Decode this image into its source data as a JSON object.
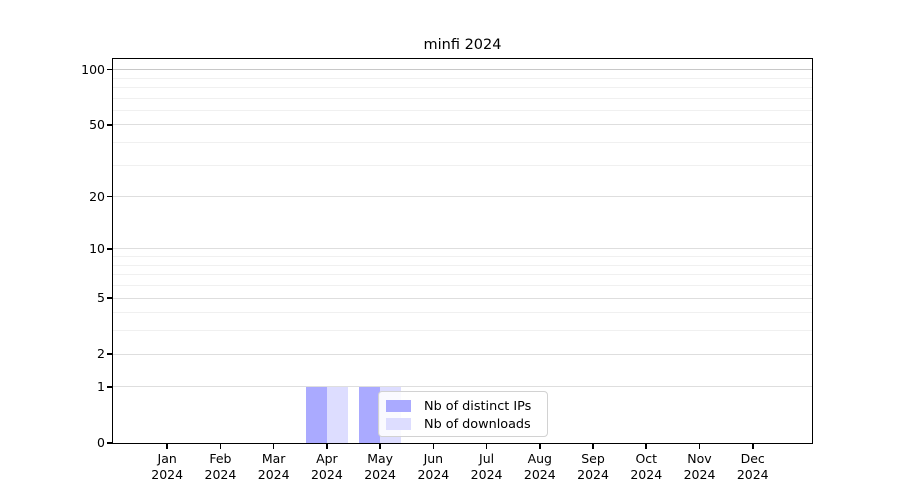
{
  "title": "minfi 2024",
  "legend": {
    "items": [
      {
        "label": "Nb of distinct IPs",
        "color": "#aaaaff"
      },
      {
        "label": "Nb of downloads",
        "color": "#ddddff"
      }
    ]
  },
  "axes": {
    "y_tick_labels": [
      "0",
      "1",
      "2",
      "5",
      "10",
      "20",
      "50",
      "100"
    ],
    "x_year": "2024"
  },
  "chart_data": {
    "type": "bar",
    "title": "minfi 2024",
    "categories": [
      "Jan 2024",
      "Feb 2024",
      "Mar 2024",
      "Apr 2024",
      "May 2024",
      "Jun 2024",
      "Jul 2024",
      "Aug 2024",
      "Sep 2024",
      "Oct 2024",
      "Nov 2024",
      "Dec 2024"
    ],
    "series": [
      {
        "name": "Nb of distinct IPs",
        "color": "#aaaaff",
        "values": [
          0,
          0,
          0,
          1,
          1,
          0,
          0,
          0,
          0,
          0,
          0,
          0
        ]
      },
      {
        "name": "Nb of downloads",
        "color": "#ddddff",
        "values": [
          0,
          0,
          0,
          1,
          1,
          0,
          0,
          0,
          0,
          0,
          0,
          0
        ]
      }
    ],
    "xlabel": "",
    "ylabel": "",
    "yscale": "log1p",
    "yticks": [
      0,
      1,
      2,
      5,
      10,
      20,
      50,
      100
    ],
    "gridline_values": [
      1,
      2,
      3,
      4,
      5,
      6,
      7,
      8,
      9,
      10,
      20,
      30,
      40,
      50,
      60,
      70,
      80,
      90,
      100
    ],
    "ylim": [
      0,
      113
    ],
    "grid": true,
    "legend_position": "lower center"
  },
  "grid_colors": {
    "top_major": "#c8c8c8",
    "labeled": "#dedede",
    "minor": "#f0f0f0"
  }
}
